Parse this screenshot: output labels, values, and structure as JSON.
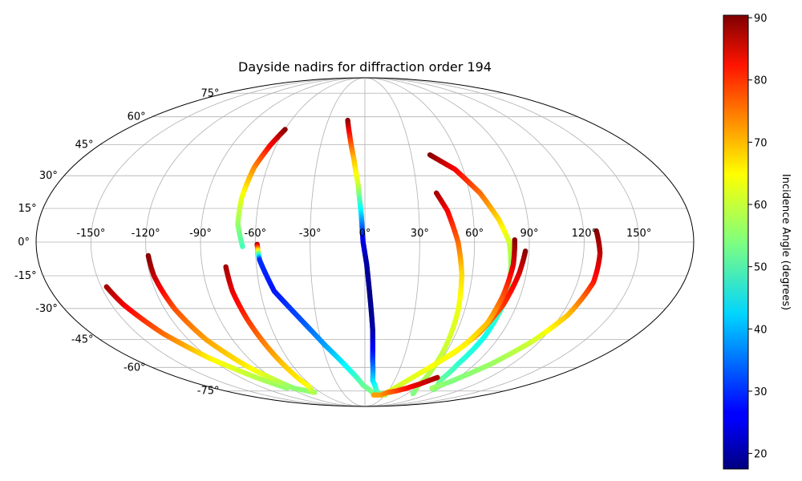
{
  "chart_data": {
    "type": "scatter",
    "projection": "mollweide",
    "title": "Dayside nadirs for diffraction order 194",
    "xlabel": "",
    "ylabel": "",
    "grid": true,
    "lon_ticks": [
      -150,
      -120,
      -90,
      -60,
      -30,
      0,
      30,
      60,
      90,
      120,
      150
    ],
    "lat_ticks": [
      -75,
      -60,
      -45,
      -30,
      -15,
      0,
      15,
      30,
      45,
      60,
      75
    ],
    "lon_tick_labels": [
      "-150°",
      "-120°",
      "-90°",
      "-60°",
      "-30°",
      "0°",
      "30°",
      "60°",
      "90°",
      "120°",
      "150°"
    ],
    "lat_tick_labels": [
      "-75°",
      "-60°",
      "-45°",
      "-30°",
      "-15°",
      "0°",
      "15°",
      "30°",
      "45°",
      "60°",
      "75°"
    ],
    "colorbar": {
      "label": "Incidence Angle (degrees)",
      "vmin": 17.5,
      "vmax": 90.4,
      "ticks": [
        20,
        30,
        40,
        50,
        60,
        70,
        80,
        90
      ],
      "tick_labels": [
        "20",
        "30",
        "40",
        "50",
        "60",
        "70",
        "80",
        "90"
      ],
      "colormap": "jet"
    },
    "tracks": [
      {
        "points": [
          [
            -147,
            -20,
            88
          ],
          [
            -143,
            -28,
            83
          ],
          [
            -133,
            -42,
            74
          ],
          [
            -120,
            -55,
            64
          ],
          [
            -105,
            -66,
            58
          ],
          [
            -93,
            -73,
            55
          ]
        ]
      },
      {
        "points": [
          [
            -119,
            -6,
            90
          ],
          [
            -118,
            -15,
            86
          ],
          [
            -114,
            -30,
            76
          ],
          [
            -108,
            -45,
            70
          ],
          [
            -98,
            -60,
            64
          ],
          [
            -85,
            -73,
            55
          ],
          [
            -68,
            -76,
            55
          ]
        ]
      },
      {
        "points": [
          [
            -77,
            -11,
            88
          ],
          [
            -76,
            -22,
            83
          ],
          [
            -73,
            -35,
            78
          ],
          [
            -69,
            -50,
            71
          ],
          [
            -66,
            -62,
            66
          ],
          [
            -64,
            -72,
            63
          ],
          [
            -70,
            -76,
            58
          ]
        ]
      },
      {
        "points": [
          [
            -59,
            -1,
            88
          ],
          [
            -58,
            -8,
            30
          ],
          [
            -52,
            -22,
            28
          ],
          [
            -40,
            -35,
            32
          ],
          [
            -28,
            -48,
            38
          ],
          [
            -15,
            -60,
            45
          ],
          [
            -2,
            -71,
            52
          ],
          [
            15,
            -78,
            54
          ],
          [
            35,
            -76,
            56
          ]
        ]
      },
      {
        "points": [
          [
            -60,
            53,
            90
          ],
          [
            -64,
            45,
            82
          ],
          [
            -68,
            34,
            72
          ],
          [
            -70,
            20,
            62
          ],
          [
            -70,
            8,
            56
          ],
          [
            -67,
            -2,
            50
          ]
        ]
      },
      {
        "points": [
          [
            -14,
            58,
            90
          ],
          [
            -11,
            50,
            80
          ],
          [
            -7,
            38,
            68
          ],
          [
            -4,
            26,
            60
          ],
          [
            -2,
            12,
            42
          ],
          [
            -1,
            0,
            25
          ],
          [
            1,
            -10,
            20
          ],
          [
            3,
            -25,
            18
          ],
          [
            5,
            -40,
            20
          ],
          [
            6,
            -55,
            30
          ],
          [
            8,
            -68,
            42
          ],
          [
            16,
            -76,
            50
          ],
          [
            30,
            -78,
            54
          ]
        ]
      },
      {
        "points": [
          [
            41,
            22,
            88
          ],
          [
            46,
            14,
            82
          ],
          [
            51,
            0,
            74
          ],
          [
            54,
            -14,
            66
          ],
          [
            56,
            -30,
            62
          ],
          [
            57,
            -45,
            60
          ],
          [
            58,
            -60,
            58
          ],
          [
            60,
            -72,
            56
          ],
          [
            68,
            -77,
            54
          ]
        ]
      },
      {
        "points": [
          [
            42,
            40,
            90
          ],
          [
            55,
            33,
            82
          ],
          [
            66,
            22,
            74
          ],
          [
            74,
            10,
            66
          ],
          [
            79,
            0,
            60
          ],
          [
            81,
            -12,
            55
          ],
          [
            82,
            -28,
            50
          ],
          [
            80,
            -44,
            46
          ],
          [
            76,
            -58,
            48
          ],
          [
            76,
            -68,
            52
          ],
          [
            86,
            -74,
            54
          ]
        ]
      },
      {
        "points": [
          [
            88,
            -4,
            90
          ],
          [
            86,
            -14,
            84
          ],
          [
            82,
            -28,
            78
          ],
          [
            75,
            -42,
            72
          ],
          [
            66,
            -52,
            66
          ],
          [
            52,
            -62,
            62
          ],
          [
            37,
            -72,
            60
          ],
          [
            27,
            -78,
            62
          ]
        ]
      },
      {
        "points": [
          [
            82,
            1,
            90
          ],
          [
            82,
            -10,
            84
          ],
          [
            80,
            -24,
            76
          ],
          [
            77,
            -37,
            68
          ],
          [
            70,
            -48,
            64
          ],
          [
            58,
            -58,
            62
          ]
        ]
      },
      {
        "points": [
          [
            127,
            5,
            90
          ],
          [
            129,
            -5,
            86
          ],
          [
            129,
            -18,
            80
          ],
          [
            124,
            -33,
            68
          ],
          [
            115,
            -46,
            60
          ],
          [
            103,
            -58,
            56
          ],
          [
            88,
            -69,
            54
          ],
          [
            80,
            -73,
            56
          ]
        ]
      },
      {
        "points": [
          [
            13,
            -78,
            70
          ],
          [
            24,
            -78,
            70
          ],
          [
            31,
            -76,
            73
          ],
          [
            40,
            -75,
            76
          ],
          [
            50,
            -73,
            80
          ],
          [
            60,
            -70,
            84
          ],
          [
            70,
            -66,
            87
          ]
        ]
      }
    ]
  }
}
